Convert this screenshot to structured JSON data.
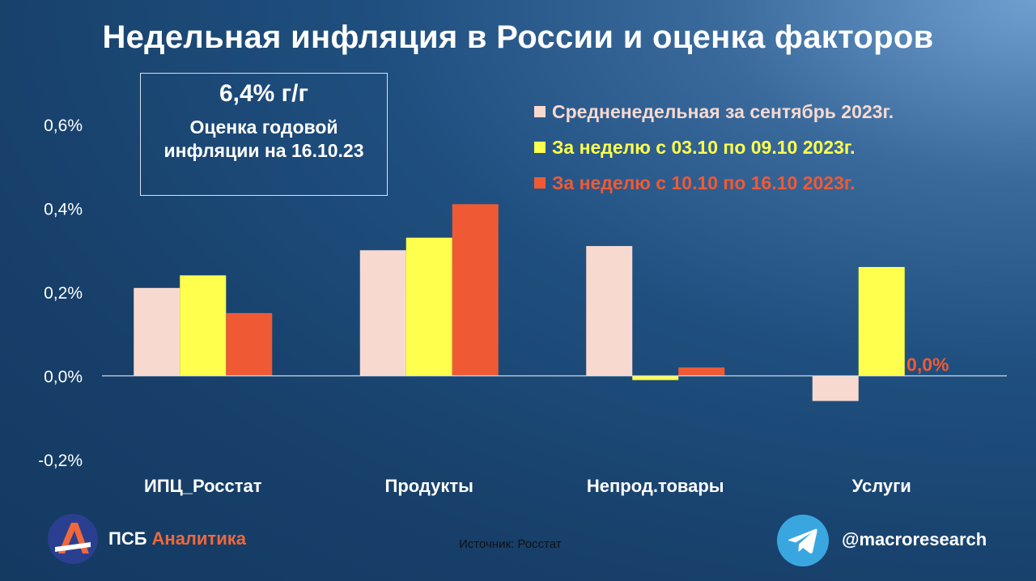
{
  "title": "Недельная инфляция в России и оценка факторов",
  "estimate": {
    "value": "6,4% г/г",
    "caption": "Оценка годовой инфляции на 16.10.23"
  },
  "chart_data": {
    "type": "bar",
    "categories": [
      "ИПЦ_Росстат",
      "Продукты",
      "Непрод.товары",
      "Услуги"
    ],
    "series": [
      {
        "name": "Средненедельная за сентябрь 2023г.",
        "color": "#f8d9d0",
        "values": [
          0.21,
          0.3,
          0.31,
          -0.06
        ]
      },
      {
        "name": "За неделю с 03.10 по 09.10 2023г.",
        "color": "#ffff4d",
        "values": [
          0.24,
          0.33,
          -0.01,
          0.26
        ]
      },
      {
        "name": "За неделю с 10.10 по 16.10 2023г.",
        "color": "#ef5a35",
        "values": [
          0.15,
          0.41,
          0.02,
          0.0
        ]
      }
    ],
    "ylim": [
      -0.2,
      0.6
    ],
    "yticks": [
      0.6,
      0.4,
      0.2,
      0.0,
      -0.2
    ],
    "ytick_labels": [
      "0,6%",
      "0,4%",
      "0,2%",
      "0,0%",
      "-0,2%"
    ],
    "annotations": [
      {
        "category": "Услуги",
        "series": 2,
        "text": "0,0%"
      }
    ],
    "legend": "top-right",
    "grid": false
  },
  "logo": {
    "brand_a": "ПСБ",
    "brand_b": "Аналитика"
  },
  "source": "Источник: Росстат",
  "handle": "@macroresearch",
  "icons": [
    "psb-logo-icon",
    "telegram-icon"
  ]
}
